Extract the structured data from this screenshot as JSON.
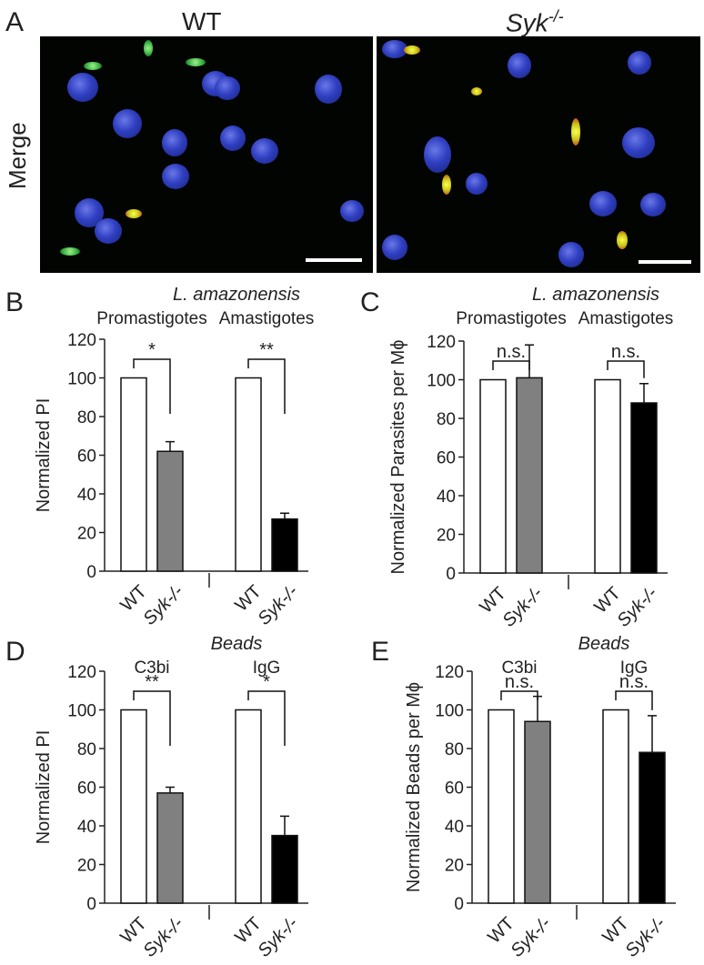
{
  "panel_a": {
    "letter": "A",
    "col_wt": "WT",
    "col_syk_base": "Syk",
    "col_syk_sup": "-/-",
    "row_label": "Merge"
  },
  "chart_data": [
    {
      "panel": "B",
      "type": "bar",
      "title": "L. amazonensis",
      "groups": [
        "Promastigotes",
        "Amastigotes"
      ],
      "categories": [
        "WT",
        "Syk-/-",
        "WT",
        "Syk-/-"
      ],
      "tick_labels": [
        "WT",
        "Syk-/-",
        "WT",
        "Syk-/-"
      ],
      "values": [
        100,
        62,
        100,
        27
      ],
      "errors": [
        0,
        5,
        0,
        3
      ],
      "fill_colors": [
        "#ffffff",
        "#808080",
        "#ffffff",
        "#000000"
      ],
      "ylabel": "Normalized PI",
      "ylim": [
        0,
        120
      ],
      "yticks": [
        "0",
        "20",
        "40",
        "60",
        "80",
        "100",
        "120"
      ],
      "significance": [
        "*",
        "**"
      ]
    },
    {
      "panel": "C",
      "type": "bar",
      "title": "L. amazonensis",
      "groups": [
        "Promastigotes",
        "Amastigotes"
      ],
      "categories": [
        "WT",
        "Syk-/-",
        "WT",
        "Syk-/-"
      ],
      "tick_labels": [
        "WT",
        "Syk-/-",
        "WT",
        "Syk-/-"
      ],
      "values": [
        100,
        101,
        100,
        88
      ],
      "errors": [
        0,
        17,
        0,
        10
      ],
      "fill_colors": [
        "#ffffff",
        "#808080",
        "#ffffff",
        "#000000"
      ],
      "ylabel": "Normalized Parasites per Mϕ",
      "ylim": [
        0,
        120
      ],
      "yticks": [
        "0",
        "20",
        "40",
        "60",
        "80",
        "100",
        "120"
      ],
      "significance": [
        "n.s.",
        "n.s."
      ]
    },
    {
      "panel": "D",
      "type": "bar",
      "title": "Beads",
      "groups": [
        "C3bi",
        "IgG"
      ],
      "categories": [
        "WT",
        "Syk-/-",
        "WT",
        "Syk-/-"
      ],
      "tick_labels": [
        "WT",
        "Syk-/-",
        "WT",
        "Syk-/-"
      ],
      "values": [
        100,
        57,
        100,
        35
      ],
      "errors": [
        0,
        3,
        0,
        10
      ],
      "fill_colors": [
        "#ffffff",
        "#808080",
        "#ffffff",
        "#000000"
      ],
      "ylabel": "Normalized PI",
      "ylim": [
        0,
        120
      ],
      "yticks": [
        "0",
        "20",
        "40",
        "60",
        "80",
        "100",
        "120"
      ],
      "significance": [
        "**",
        "*"
      ]
    },
    {
      "panel": "E",
      "type": "bar",
      "title": "Beads",
      "groups": [
        "C3bi",
        "IgG"
      ],
      "categories": [
        "WT",
        "Syk-/-",
        "WT",
        "Syk-/-"
      ],
      "tick_labels": [
        "WT",
        "Syk-/-",
        "WT",
        "Syk-/-"
      ],
      "values": [
        100,
        94,
        100,
        78
      ],
      "errors": [
        0,
        13,
        0,
        19
      ],
      "fill_colors": [
        "#ffffff",
        "#808080",
        "#ffffff",
        "#000000"
      ],
      "ylabel": "Normalized Beads per Mϕ",
      "ylim": [
        0,
        120
      ],
      "yticks": [
        "0",
        "20",
        "40",
        "60",
        "80",
        "100",
        "120"
      ],
      "significance": [
        "n.s.",
        "n.s."
      ]
    }
  ]
}
